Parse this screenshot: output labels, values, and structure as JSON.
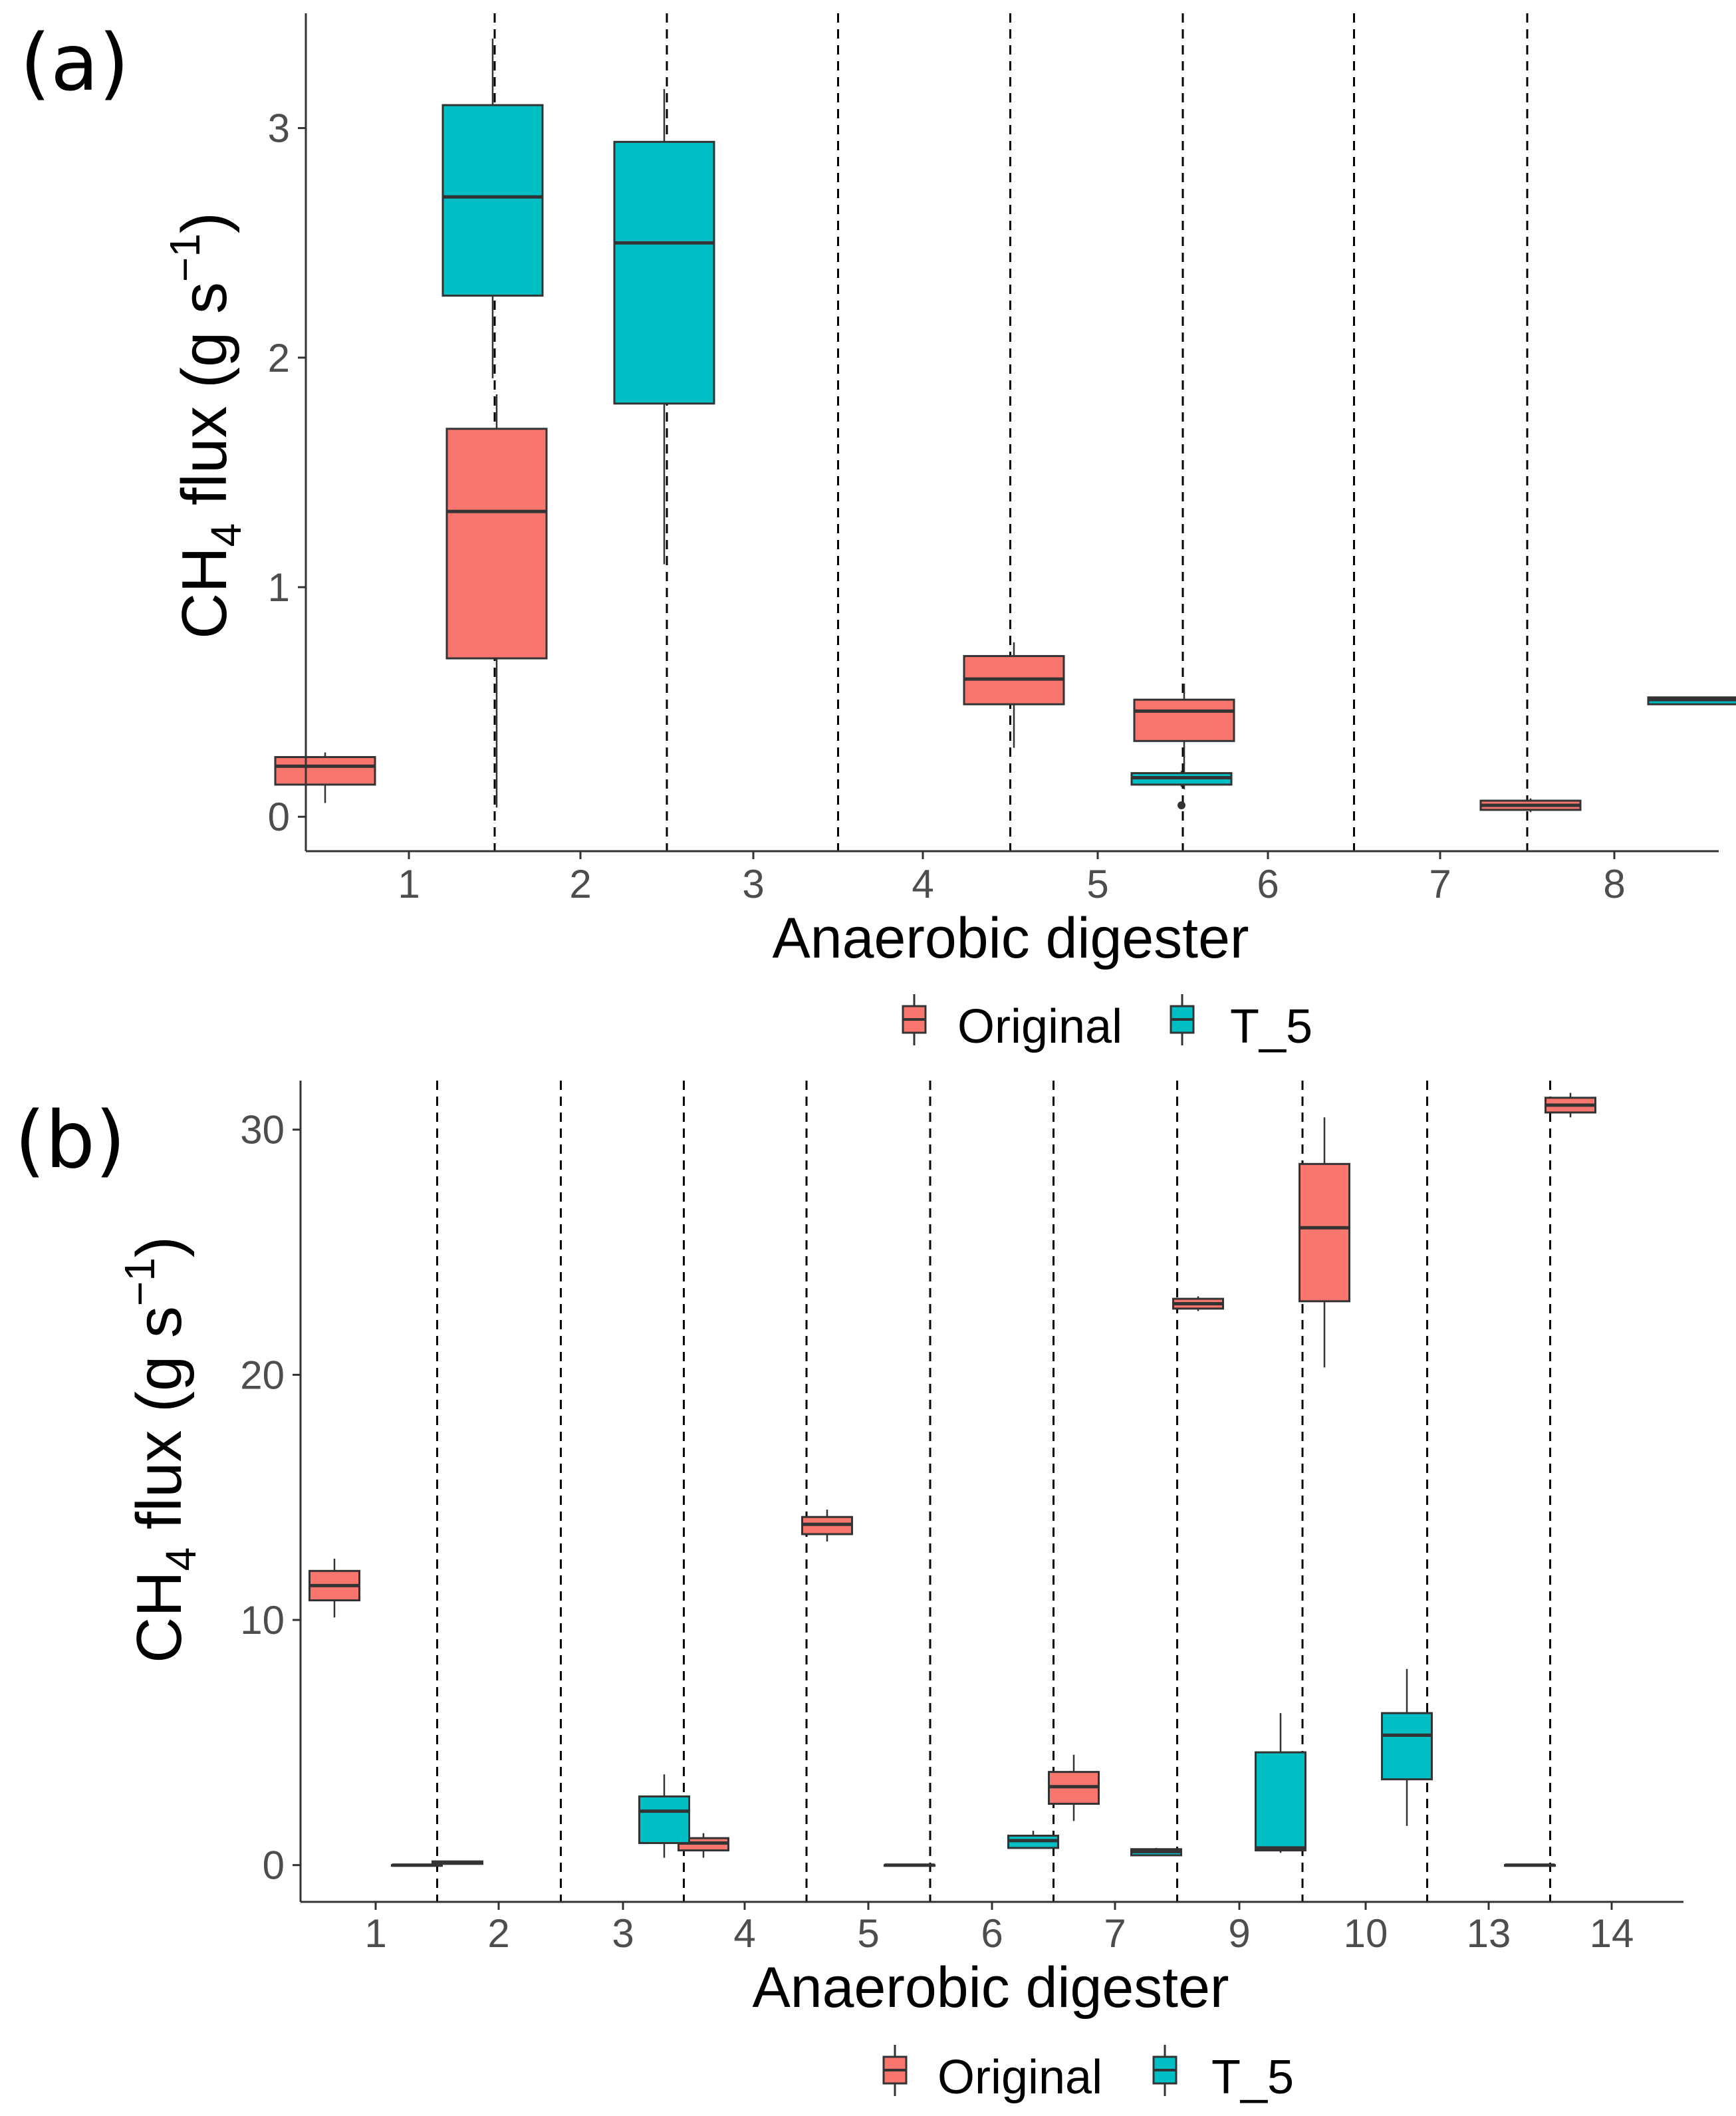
{
  "colors": {
    "original": "#F8766D",
    "t5": "#00BFC4",
    "line": "#333333",
    "axis": "#333333",
    "tick_text": "#4D4D4D"
  },
  "legend": {
    "items": [
      "Original",
      "T_5"
    ]
  },
  "chart_data": [
    {
      "type": "boxplot",
      "panel_label": "(a)",
      "title": "",
      "ylabel_parts": [
        "CH",
        "4",
        " flux (g s",
        "−1",
        ")"
      ],
      "xlabel": "Anaerobic digester",
      "categories": [
        "1",
        "2",
        "3",
        "4",
        "5",
        "6",
        "7",
        "8"
      ],
      "ylim": [
        -0.15,
        3.5
      ],
      "yticks": [
        0,
        1,
        2,
        3
      ],
      "ytick_labels": [
        "0",
        "1",
        "2",
        "3"
      ],
      "grid": false,
      "legend_position": "bottom",
      "series": [
        {
          "name": "Original",
          "boxes": [
            {
              "category": "1",
              "min": 0.06,
              "q1": 0.14,
              "median": 0.22,
              "q3": 0.26,
              "max": 0.28,
              "outliers": []
            },
            {
              "category": "2",
              "min": 0.04,
              "q1": 0.69,
              "median": 1.33,
              "q3": 1.69,
              "max": 1.84,
              "outliers": []
            },
            {
              "category": "5",
              "min": 0.3,
              "q1": 0.49,
              "median": 0.6,
              "q3": 0.7,
              "max": 0.76,
              "outliers": []
            },
            {
              "category": "6",
              "min": 0.12,
              "q1": 0.33,
              "median": 0.46,
              "q3": 0.51,
              "max": 0.58,
              "outliers": []
            },
            {
              "category": "8",
              "min": 0.02,
              "q1": 0.03,
              "median": 0.05,
              "q3": 0.07,
              "max": 0.08,
              "outliers": []
            }
          ]
        },
        {
          "name": "T_5",
          "boxes": [
            {
              "category": "1",
              "min": 1.91,
              "q1": 2.27,
              "median": 2.7,
              "q3": 3.1,
              "max": 3.39,
              "outliers": []
            },
            {
              "category": "2",
              "min": 1.1,
              "q1": 1.8,
              "median": 2.5,
              "q3": 2.94,
              "max": 3.17,
              "outliers": []
            },
            {
              "category": "5",
              "min": 0.13,
              "q1": 0.14,
              "median": 0.17,
              "q3": 0.19,
              "max": 0.2,
              "outliers": [
                0.05
              ]
            },
            {
              "category": "8",
              "min": 0.49,
              "q1": 0.49,
              "median": 0.51,
              "q3": 0.52,
              "max": 0.52,
              "outliers": []
            }
          ]
        }
      ]
    },
    {
      "type": "boxplot",
      "panel_label": "(b)",
      "title": "",
      "ylabel_parts": [
        "CH",
        "4",
        " flux (g s",
        "−1",
        ")"
      ],
      "xlabel": "Anaerobic digester",
      "categories": [
        "1",
        "2",
        "3",
        "4",
        "5",
        "6",
        "7",
        "9",
        "10",
        "13",
        "14"
      ],
      "ylim": [
        -1.5,
        32
      ],
      "yticks": [
        0,
        10,
        20,
        30
      ],
      "ytick_labels": [
        "0",
        "10",
        "20",
        "30"
      ],
      "grid": false,
      "legend_position": "bottom",
      "series": [
        {
          "name": "Original",
          "boxes": [
            {
              "category": "1",
              "min": 10.1,
              "q1": 10.8,
              "median": 11.4,
              "q3": 12.0,
              "max": 12.5,
              "outliers": []
            },
            {
              "category": "2",
              "min": 0.05,
              "q1": 0.05,
              "median": 0.1,
              "q3": 0.15,
              "max": 0.15,
              "outliers": []
            },
            {
              "category": "4",
              "min": 0.3,
              "q1": 0.6,
              "median": 0.9,
              "q3": 1.1,
              "max": 1.3,
              "outliers": []
            },
            {
              "category": "5",
              "min": 13.2,
              "q1": 13.5,
              "median": 13.9,
              "q3": 14.2,
              "max": 14.5,
              "outliers": []
            },
            {
              "category": "7",
              "min": 1.8,
              "q1": 2.5,
              "median": 3.2,
              "q3": 3.8,
              "max": 4.5,
              "outliers": []
            },
            {
              "category": "9",
              "min": 22.6,
              "q1": 22.7,
              "median": 22.9,
              "q3": 23.1,
              "max": 23.2,
              "outliers": []
            },
            {
              "category": "10",
              "min": 20.3,
              "q1": 23.0,
              "median": 26.0,
              "q3": 28.6,
              "max": 30.5,
              "outliers": []
            },
            {
              "category": "14",
              "min": 30.5,
              "q1": 30.7,
              "median": 31.0,
              "q3": 31.3,
              "max": 31.5,
              "outliers": []
            }
          ]
        },
        {
          "name": "T_5",
          "boxes": [
            {
              "category": "1",
              "min": 0.0,
              "q1": 0.0,
              "median": 0.0,
              "q3": 0.0,
              "max": 0.0,
              "outliers": []
            },
            {
              "category": "3",
              "min": 0.3,
              "q1": 0.9,
              "median": 2.2,
              "q3": 2.8,
              "max": 3.7,
              "outliers": []
            },
            {
              "category": "5",
              "min": 0.0,
              "q1": 0.0,
              "median": 0.0,
              "q3": 0.0,
              "max": 0.0,
              "outliers": []
            },
            {
              "category": "6",
              "min": 0.7,
              "q1": 0.7,
              "median": 1.0,
              "q3": 1.2,
              "max": 1.4,
              "outliers": []
            },
            {
              "category": "7",
              "min": 0.4,
              "q1": 0.4,
              "median": 0.55,
              "q3": 0.65,
              "max": 0.7,
              "outliers": []
            },
            {
              "category": "9",
              "min": 0.5,
              "q1": 0.6,
              "median": 0.7,
              "q3": 4.6,
              "max": 6.2,
              "outliers": []
            },
            {
              "category": "10",
              "min": 1.6,
              "q1": 3.5,
              "median": 5.3,
              "q3": 6.2,
              "max": 8.0,
              "outliers": []
            },
            {
              "category": "13",
              "min": 0.0,
              "q1": 0.0,
              "median": 0.0,
              "q3": 0.0,
              "max": 0.0,
              "outliers": []
            }
          ]
        }
      ]
    }
  ]
}
